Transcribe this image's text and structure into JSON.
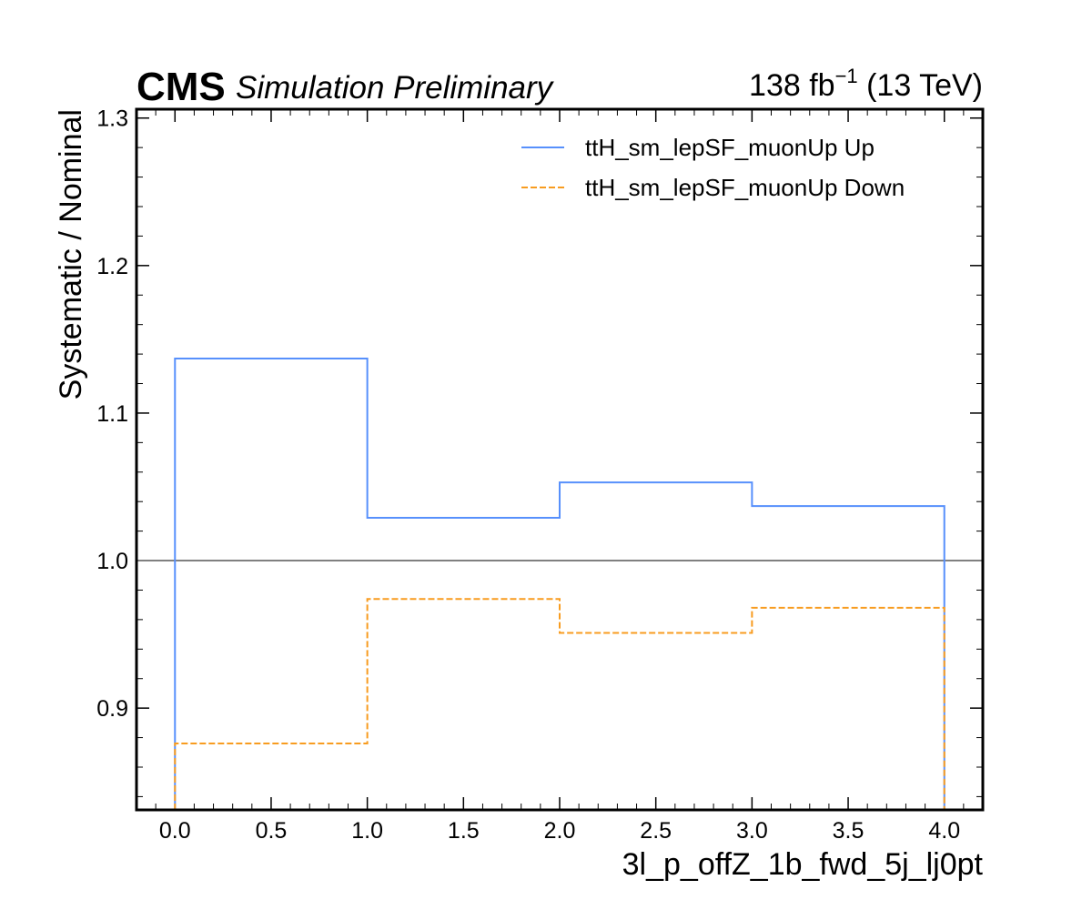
{
  "chart_data": {
    "type": "line",
    "style": "step",
    "header": {
      "experiment": "CMS",
      "status": "Simulation Preliminary",
      "luminosity": "138 fb",
      "luminosity_exponent": "−1",
      "energy": "(13 TeV)"
    },
    "xlabel": "3l_p_offZ_1b_fwd_5j_lj0pt",
    "ylabel": "Systematic / Nominal",
    "xlim": [
      -0.2,
      4.2
    ],
    "ylim": [
      0.831,
      1.306
    ],
    "x_ticks": [
      0.0,
      0.5,
      1.0,
      1.5,
      2.0,
      2.5,
      3.0,
      3.5,
      4.0
    ],
    "x_tick_labels": [
      "0.0",
      "0.5",
      "1.0",
      "1.5",
      "2.0",
      "2.5",
      "3.0",
      "3.5",
      "4.0"
    ],
    "y_ticks": [
      0.9,
      1.0,
      1.1,
      1.2,
      1.3
    ],
    "y_tick_labels": [
      "0.9",
      "1.0",
      "1.1",
      "1.2",
      "1.3"
    ],
    "x_minor_step": 0.1,
    "y_minor_step": 0.02,
    "bin_edges": [
      0,
      1,
      2,
      3,
      4
    ],
    "reference_line": 1.0,
    "reference_color": "#808080",
    "legend_position": "top-right",
    "series": [
      {
        "name": "ttH_sm_lepSF_muonUp Up",
        "values": [
          1.137,
          1.029,
          1.053,
          1.037
        ],
        "color": "#5790fc",
        "dash": "solid"
      },
      {
        "name": "ttH_sm_lepSF_muonUp Down",
        "values": [
          0.876,
          0.974,
          0.951,
          0.968
        ],
        "color": "#f89c20",
        "dash": "dashed"
      }
    ]
  }
}
